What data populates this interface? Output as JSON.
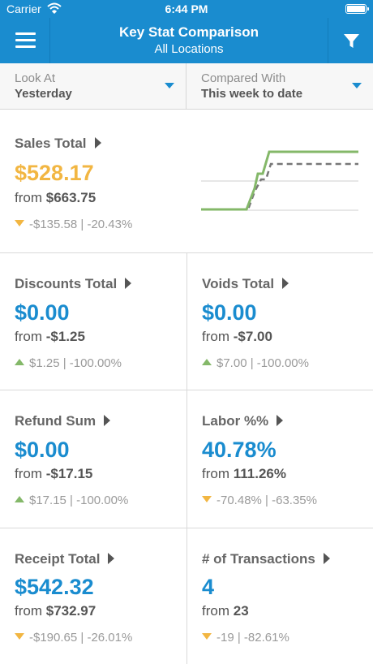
{
  "status": {
    "carrier": "Carrier",
    "time": "6:44 PM"
  },
  "nav": {
    "title": "Key Stat Comparison",
    "subtitle": "All Locations"
  },
  "selectors": {
    "look_at": {
      "label": "Look At",
      "value": "Yesterday"
    },
    "compared_with": {
      "label": "Compared With",
      "value": "This week to date"
    }
  },
  "stats": [
    {
      "title": "Sales Total",
      "value": "$528.17",
      "from_prefix": "from",
      "from_value": "$663.75",
      "direction": "down",
      "change": "-$135.58 | -20.43%"
    },
    {
      "title": "Discounts Total",
      "value": "$0.00",
      "from_prefix": "from",
      "from_value": "-$1.25",
      "direction": "up",
      "change": "$1.25 | -100.00%"
    },
    {
      "title": "Voids Total",
      "value": "$0.00",
      "from_prefix": "from",
      "from_value": "-$7.00",
      "direction": "up",
      "change": "$7.00 | -100.00%"
    },
    {
      "title": "Refund Sum",
      "value": "$0.00",
      "from_prefix": "from",
      "from_value": "-$17.15",
      "direction": "up",
      "change": "$17.15 | -100.00%"
    },
    {
      "title": "Labor %%",
      "value": "40.78%",
      "from_prefix": "from",
      "from_value": "111.26%",
      "direction": "down",
      "change": "-70.48% | -63.35%"
    },
    {
      "title": "Receipt Total",
      "value": "$542.32",
      "from_prefix": "from",
      "from_value": "$732.97",
      "direction": "down",
      "change": "-$190.65 | -26.01%"
    },
    {
      "title": "# of Transactions",
      "value": "4",
      "from_prefix": "from",
      "from_value": "23",
      "direction": "down",
      "change": "-19 | -82.61%"
    }
  ],
  "colors": {
    "brand_blue": "#1a8ccf",
    "value_orange": "#f2b642",
    "up_green": "#84b869",
    "down_orange": "#f2b642"
  },
  "icons": {
    "menu": "hamburger-icon",
    "filter": "funnel-icon",
    "wifi": "wifi-icon",
    "battery": "battery-icon"
  }
}
